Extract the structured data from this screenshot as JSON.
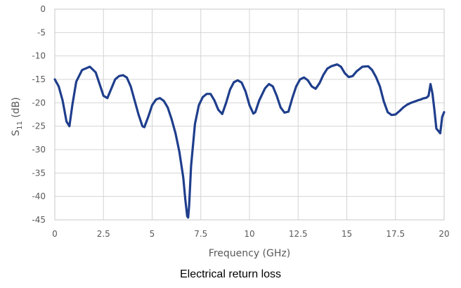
{
  "chart_data": {
    "type": "line",
    "caption": "Electrical return loss",
    "xlabel": "Frequency (GHz)",
    "ylabel_main": "S",
    "ylabel_sub": "11",
    "ylabel_unit": " (dB)",
    "xlim": [
      0,
      20
    ],
    "ylim": [
      -45,
      0
    ],
    "xticks": [
      0,
      2.5,
      5,
      7.5,
      10,
      12.5,
      15,
      17.5,
      20
    ],
    "xtick_labels": [
      "0",
      "2.5",
      "5",
      "7.5",
      "10",
      "12.5",
      "15",
      "17.5",
      "20"
    ],
    "yticks": [
      0,
      -5,
      -10,
      -15,
      -20,
      -25,
      -30,
      -35,
      -40,
      -45
    ],
    "ytick_labels": [
      "0",
      "-5",
      "-10",
      "-15",
      "-20",
      "-25",
      "-30",
      "-35",
      "-40",
      "-45"
    ],
    "grid": true,
    "line_color": "#1f3e8c",
    "series": [
      {
        "x": [
          0,
          0.2,
          0.4,
          0.6,
          0.75,
          0.9,
          1.1,
          1.4,
          1.8,
          2.1,
          2.3,
          2.5,
          2.7,
          2.9,
          3.1,
          3.3,
          3.5,
          3.7,
          3.9,
          4.1,
          4.3,
          4.5,
          4.6,
          4.8,
          5.0,
          5.2,
          5.4,
          5.6,
          5.8,
          6.0,
          6.2,
          6.4,
          6.6,
          6.7,
          6.8,
          6.85,
          6.9,
          7.0,
          7.2,
          7.4,
          7.6,
          7.8,
          8.0,
          8.2,
          8.4,
          8.6,
          8.8,
          9.0,
          9.2,
          9.4,
          9.6,
          9.8,
          10.0,
          10.2,
          10.3,
          10.5,
          10.8,
          11.0,
          11.2,
          11.4,
          11.6,
          11.8,
          12.0,
          12.2,
          12.4,
          12.6,
          12.8,
          13.0,
          13.2,
          13.4,
          13.6,
          13.8,
          14.0,
          14.2,
          14.5,
          14.7,
          14.9,
          15.1,
          15.3,
          15.5,
          15.8,
          16.1,
          16.3,
          16.5,
          16.7,
          16.9,
          17.1,
          17.3,
          17.5,
          17.7,
          17.9,
          18.1,
          18.3,
          18.5,
          18.7,
          18.8,
          18.9,
          19.0,
          19.1,
          19.2,
          19.3,
          19.4,
          19.5,
          19.6,
          19.7,
          19.8,
          19.9,
          20.0
        ],
        "y": [
          -15,
          -16.5,
          -19.5,
          -24,
          -25,
          -20.5,
          -15.5,
          -13,
          -12.3,
          -13.5,
          -16,
          -18.5,
          -19,
          -17,
          -15,
          -14.3,
          -14.1,
          -14.6,
          -16.5,
          -19.5,
          -22.5,
          -25,
          -25.2,
          -23,
          -20.5,
          -19.3,
          -19,
          -19.6,
          -21,
          -23.5,
          -26.5,
          -30.5,
          -36,
          -40.5,
          -44.2,
          -44.5,
          -42,
          -33.5,
          -24.5,
          -20.5,
          -18.8,
          -18.1,
          -18.1,
          -19.5,
          -21.5,
          -22.4,
          -20,
          -17.2,
          -15.6,
          -15.2,
          -15.7,
          -17.6,
          -20.5,
          -22.3,
          -22,
          -19.5,
          -16.9,
          -16,
          -16.5,
          -18.5,
          -21,
          -22.1,
          -21.9,
          -19,
          -16.5,
          -15,
          -14.6,
          -15.2,
          -16.5,
          -17,
          -15.8,
          -14,
          -12.7,
          -12.2,
          -11.8,
          -12.3,
          -13.7,
          -14.5,
          -14.3,
          -13.3,
          -12.3,
          -12.2,
          -13,
          -14.5,
          -16.5,
          -19.7,
          -22,
          -22.6,
          -22.5,
          -21.8,
          -21,
          -20.4,
          -20,
          -19.7,
          -19.4,
          -19.3,
          -19.1,
          -19.0,
          -18.9,
          -18.5,
          -16.0,
          -18.0,
          -21.5,
          -25.5,
          -26.0,
          -26.5,
          -23.0,
          -22.0
        ]
      }
    ]
  }
}
